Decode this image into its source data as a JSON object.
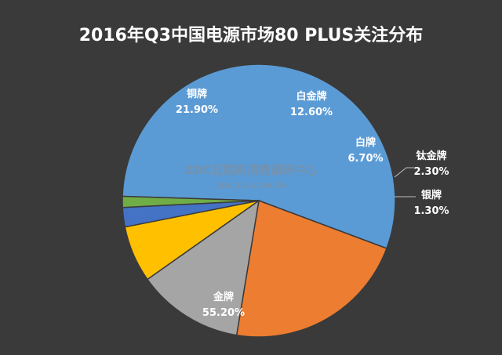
{
  "chart_data": {
    "type": "pie",
    "title": "2016年Q3中国电源市场80 PLUS关注分布",
    "slices": [
      {
        "label": "金牌",
        "value": 55.2,
        "value_label": "55.20%",
        "color": "#5b9bd5"
      },
      {
        "label": "铜牌",
        "value": 21.9,
        "value_label": "21.90%",
        "color": "#ed7d31"
      },
      {
        "label": "白金牌",
        "value": 12.6,
        "value_label": "12.60%",
        "color": "#a5a5a5"
      },
      {
        "label": "白牌",
        "value": 6.7,
        "value_label": "6.70%",
        "color": "#ffc000"
      },
      {
        "label": "钛金牌",
        "value": 2.3,
        "value_label": "2.30%",
        "color": "#4472c4"
      },
      {
        "label": "银牌",
        "value": 1.3,
        "value_label": "1.30%",
        "color": "#70ad47"
      }
    ],
    "legend": "none"
  },
  "watermark": {
    "main": "ZDC互联网消费调研中心",
    "sub": "ZDC.ZOL.COM.CN"
  },
  "colors": {
    "background": "#3a3a3a",
    "text": "#ffffff"
  }
}
